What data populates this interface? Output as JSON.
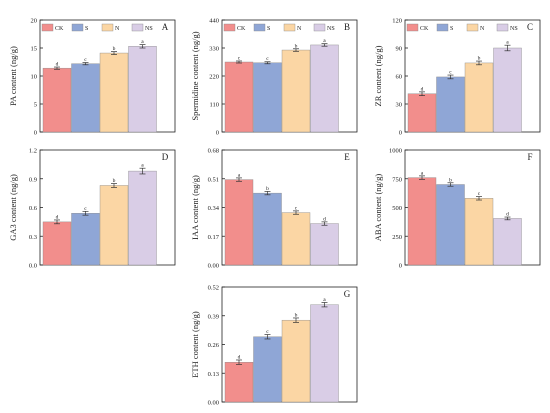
{
  "colors": {
    "CK": "#f28e8c",
    "S": "#8fa6d6",
    "N": "#fbd6a4",
    "NS": "#d9cde6"
  },
  "chart_data": [
    {
      "panel": "A",
      "type": "bar",
      "ylabel": "PA content (ng/g)",
      "ylim": [
        0,
        20
      ],
      "yticks": [
        "0",
        "5",
        "10",
        "15",
        "20"
      ],
      "legend": [
        "CK",
        "S",
        "N",
        "NS"
      ],
      "categories": [
        "CK",
        "S",
        "N",
        "NS"
      ],
      "values": [
        11.4,
        12.2,
        14.1,
        15.3
      ],
      "errors": [
        0.2,
        0.2,
        0.25,
        0.3
      ],
      "letters": [
        "d",
        "c",
        "b",
        "a"
      ]
    },
    {
      "panel": "B",
      "type": "bar",
      "ylabel": "Spermidine content (ng/g)",
      "ylim": [
        0,
        440
      ],
      "yticks": [
        "0",
        "110",
        "220",
        "330",
        "440"
      ],
      "legend": [
        "CK",
        "S",
        "N",
        "NS"
      ],
      "categories": [
        "CK",
        "S",
        "N",
        "NS"
      ],
      "values": [
        275,
        272,
        322,
        342
      ],
      "errors": [
        4,
        4,
        5,
        5
      ],
      "letters": [
        "c",
        "c",
        "b",
        "a"
      ]
    },
    {
      "panel": "C",
      "type": "bar",
      "ylabel": "ZR content (ng/g)",
      "ylim": [
        0,
        120
      ],
      "yticks": [
        "0",
        "30",
        "60",
        "90",
        "120"
      ],
      "legend": [
        "CK",
        "S",
        "N",
        "NS"
      ],
      "categories": [
        "CK",
        "S",
        "N",
        "NS"
      ],
      "values": [
        41,
        59,
        74,
        90
      ],
      "errors": [
        2,
        2,
        2,
        3
      ],
      "letters": [
        "d",
        "c",
        "b",
        "a"
      ]
    },
    {
      "panel": "D",
      "type": "bar",
      "ylabel": "GA3 content (ng/g)",
      "ylim": [
        0,
        1.2
      ],
      "yticks": [
        "0.0",
        "0.3",
        "0.6",
        "0.9",
        "1.2"
      ],
      "categories": [
        "CK",
        "S",
        "N",
        "NS"
      ],
      "values": [
        0.45,
        0.54,
        0.83,
        0.98
      ],
      "errors": [
        0.02,
        0.02,
        0.02,
        0.03
      ],
      "letters": [
        "d",
        "c",
        "b",
        "a"
      ]
    },
    {
      "panel": "E",
      "type": "bar",
      "ylabel": "IAA content (ng/g)",
      "ylim": [
        0,
        0.68
      ],
      "yticks": [
        "0.00",
        "0.17",
        "0.34",
        "0.51",
        "0.68"
      ],
      "categories": [
        "CK",
        "S",
        "N",
        "NS"
      ],
      "values": [
        0.505,
        0.425,
        0.31,
        0.245
      ],
      "errors": [
        0.01,
        0.01,
        0.01,
        0.01
      ],
      "letters": [
        "a",
        "b",
        "c",
        "d"
      ]
    },
    {
      "panel": "F",
      "type": "bar",
      "ylabel": "ABA content (ng/g)",
      "ylim": [
        0,
        1000
      ],
      "yticks": [
        "0",
        "250",
        "500",
        "750",
        "1000"
      ],
      "categories": [
        "CK",
        "S",
        "N",
        "NS"
      ],
      "values": [
        760,
        700,
        580,
        405
      ],
      "errors": [
        15,
        15,
        15,
        12
      ],
      "letters": [
        "a",
        "b",
        "c",
        "d"
      ]
    },
    {
      "panel": "G",
      "type": "bar",
      "ylabel": "ETH content (ng/g)",
      "ylim": [
        0,
        0.52
      ],
      "yticks": [
        "0.00",
        "0.13",
        "0.26",
        "0.39",
        "0.52"
      ],
      "categories": [
        "CK",
        "S",
        "N",
        "NS"
      ],
      "values": [
        0.18,
        0.295,
        0.37,
        0.44
      ],
      "errors": [
        0.01,
        0.01,
        0.01,
        0.01
      ],
      "letters": [
        "d",
        "c",
        "b",
        "a"
      ]
    }
  ]
}
